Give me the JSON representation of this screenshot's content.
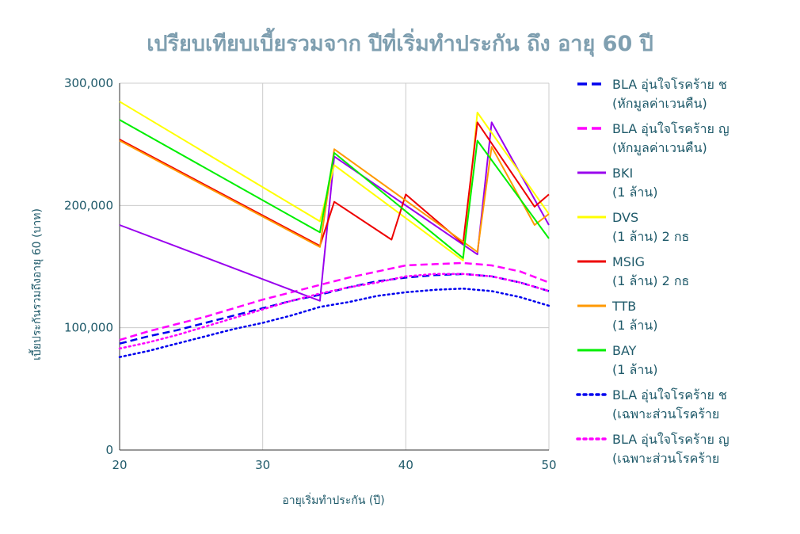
{
  "chart_data": {
    "type": "line",
    "title": "เปรียบเทียบเบี้ยรวมจาก ปีที่เริ่มทำประกัน ถึง อายุ 60 ปี",
    "xlabel": "อายุเริ่มทำประกัน (ปี)",
    "ylabel": "เบี้ยประกันรวมถึงอายุ 60 (บาท)",
    "xlim": [
      20,
      50
    ],
    "ylim": [
      0,
      300000
    ],
    "x_ticks": [
      "20",
      "30",
      "40",
      "50"
    ],
    "y_ticks": [
      "0",
      "100,000",
      "200,000",
      "300,000"
    ],
    "grid": true,
    "legend_position": "right",
    "series": [
      {
        "name_lines": [
          "BLA อุ่นใจโรคร้าย ช",
          "(หักมูลค่าเวนคืน)"
        ],
        "color": "#0000ee",
        "dash": "dash",
        "points": [
          [
            20,
            87000
          ],
          [
            22,
            93000
          ],
          [
            24,
            98000
          ],
          [
            26,
            104000
          ],
          [
            28,
            110000
          ],
          [
            30,
            116000
          ],
          [
            32,
            122000
          ],
          [
            34,
            127000
          ],
          [
            36,
            133000
          ],
          [
            38,
            138000
          ],
          [
            40,
            141000
          ],
          [
            42,
            143000
          ],
          [
            44,
            144000
          ],
          [
            46,
            142000
          ],
          [
            48,
            137000
          ],
          [
            50,
            130000
          ]
        ]
      },
      {
        "name_lines": [
          "BLA อุ่นใจโรคร้าย ญ",
          "(หักมูลค่าเวนคืน)"
        ],
        "color": "#ff00ff",
        "dash": "dash",
        "points": [
          [
            20,
            90000
          ],
          [
            22,
            97000
          ],
          [
            24,
            103000
          ],
          [
            26,
            109000
          ],
          [
            28,
            116000
          ],
          [
            30,
            123000
          ],
          [
            32,
            129000
          ],
          [
            34,
            135000
          ],
          [
            36,
            141000
          ],
          [
            38,
            146000
          ],
          [
            40,
            151000
          ],
          [
            42,
            152000
          ],
          [
            44,
            153000
          ],
          [
            46,
            151000
          ],
          [
            48,
            146000
          ],
          [
            50,
            137000
          ]
        ]
      },
      {
        "name_lines": [
          "BKI",
          "(1 ล้าน)"
        ],
        "color": "#9900ee",
        "dash": "solid",
        "points": [
          [
            20,
            184000
          ],
          [
            34,
            122000
          ],
          [
            35,
            240000
          ],
          [
            45,
            160000
          ],
          [
            46,
            268000
          ],
          [
            50,
            184000
          ]
        ]
      },
      {
        "name_lines": [
          "DVS",
          "(1 ล้าน) 2 กธ"
        ],
        "color": "#ffff00",
        "dash": "solid",
        "points": [
          [
            20,
            285000
          ],
          [
            34,
            187000
          ],
          [
            35,
            233000
          ],
          [
            44,
            155000
          ],
          [
            45,
            276000
          ],
          [
            50,
            193000
          ]
        ]
      },
      {
        "name_lines": [
          "MSIG",
          "(1 ล้าน) 2 กธ"
        ],
        "color": "#ee0000",
        "dash": "solid",
        "points": [
          [
            20,
            254000
          ],
          [
            34,
            167000
          ],
          [
            35,
            203000
          ],
          [
            39,
            172000
          ],
          [
            40,
            209000
          ],
          [
            44,
            169000
          ],
          [
            45,
            268000
          ],
          [
            49,
            199000
          ],
          [
            50,
            209000
          ]
        ]
      },
      {
        "name_lines": [
          "TTB",
          "(1 ล้าน)"
        ],
        "color": "#ff9900",
        "dash": "solid",
        "points": [
          [
            20,
            253000
          ],
          [
            34,
            166000
          ],
          [
            35,
            246000
          ],
          [
            45,
            162000
          ],
          [
            46,
            248000
          ],
          [
            49,
            184000
          ],
          [
            50,
            193000
          ]
        ]
      },
      {
        "name_lines": [
          "BAY",
          "(1 ล้าน)"
        ],
        "color": "#00ee00",
        "dash": "solid",
        "points": [
          [
            20,
            270000
          ],
          [
            34,
            178000
          ],
          [
            35,
            243000
          ],
          [
            44,
            157000
          ],
          [
            45,
            253000
          ],
          [
            50,
            173000
          ]
        ]
      },
      {
        "name_lines": [
          "BLA อุ่นใจโรคร้าย ช",
          "(เฉพาะส่วนโรคร้าย"
        ],
        "color": "#0000ee",
        "dash": "dot",
        "points": [
          [
            20,
            76000
          ],
          [
            22,
            81000
          ],
          [
            24,
            87000
          ],
          [
            26,
            93000
          ],
          [
            28,
            99000
          ],
          [
            30,
            104000
          ],
          [
            32,
            110000
          ],
          [
            34,
            117000
          ],
          [
            36,
            121000
          ],
          [
            38,
            126000
          ],
          [
            40,
            129000
          ],
          [
            42,
            131000
          ],
          [
            44,
            132000
          ],
          [
            46,
            130000
          ],
          [
            48,
            125000
          ],
          [
            50,
            118000
          ]
        ]
      },
      {
        "name_lines": [
          "BLA อุ่นใจโรคร้าย ญ",
          "(เฉพาะส่วนโรคร้าย"
        ],
        "color": "#ff00ff",
        "dash": "dot",
        "points": [
          [
            20,
            83000
          ],
          [
            22,
            88000
          ],
          [
            24,
            94000
          ],
          [
            26,
            101000
          ],
          [
            28,
            108000
          ],
          [
            30,
            115000
          ],
          [
            32,
            122000
          ],
          [
            34,
            128000
          ],
          [
            36,
            133000
          ],
          [
            38,
            137000
          ],
          [
            40,
            142000
          ],
          [
            42,
            144000
          ],
          [
            44,
            144000
          ],
          [
            46,
            142000
          ],
          [
            48,
            137000
          ],
          [
            50,
            130000
          ]
        ]
      }
    ]
  }
}
